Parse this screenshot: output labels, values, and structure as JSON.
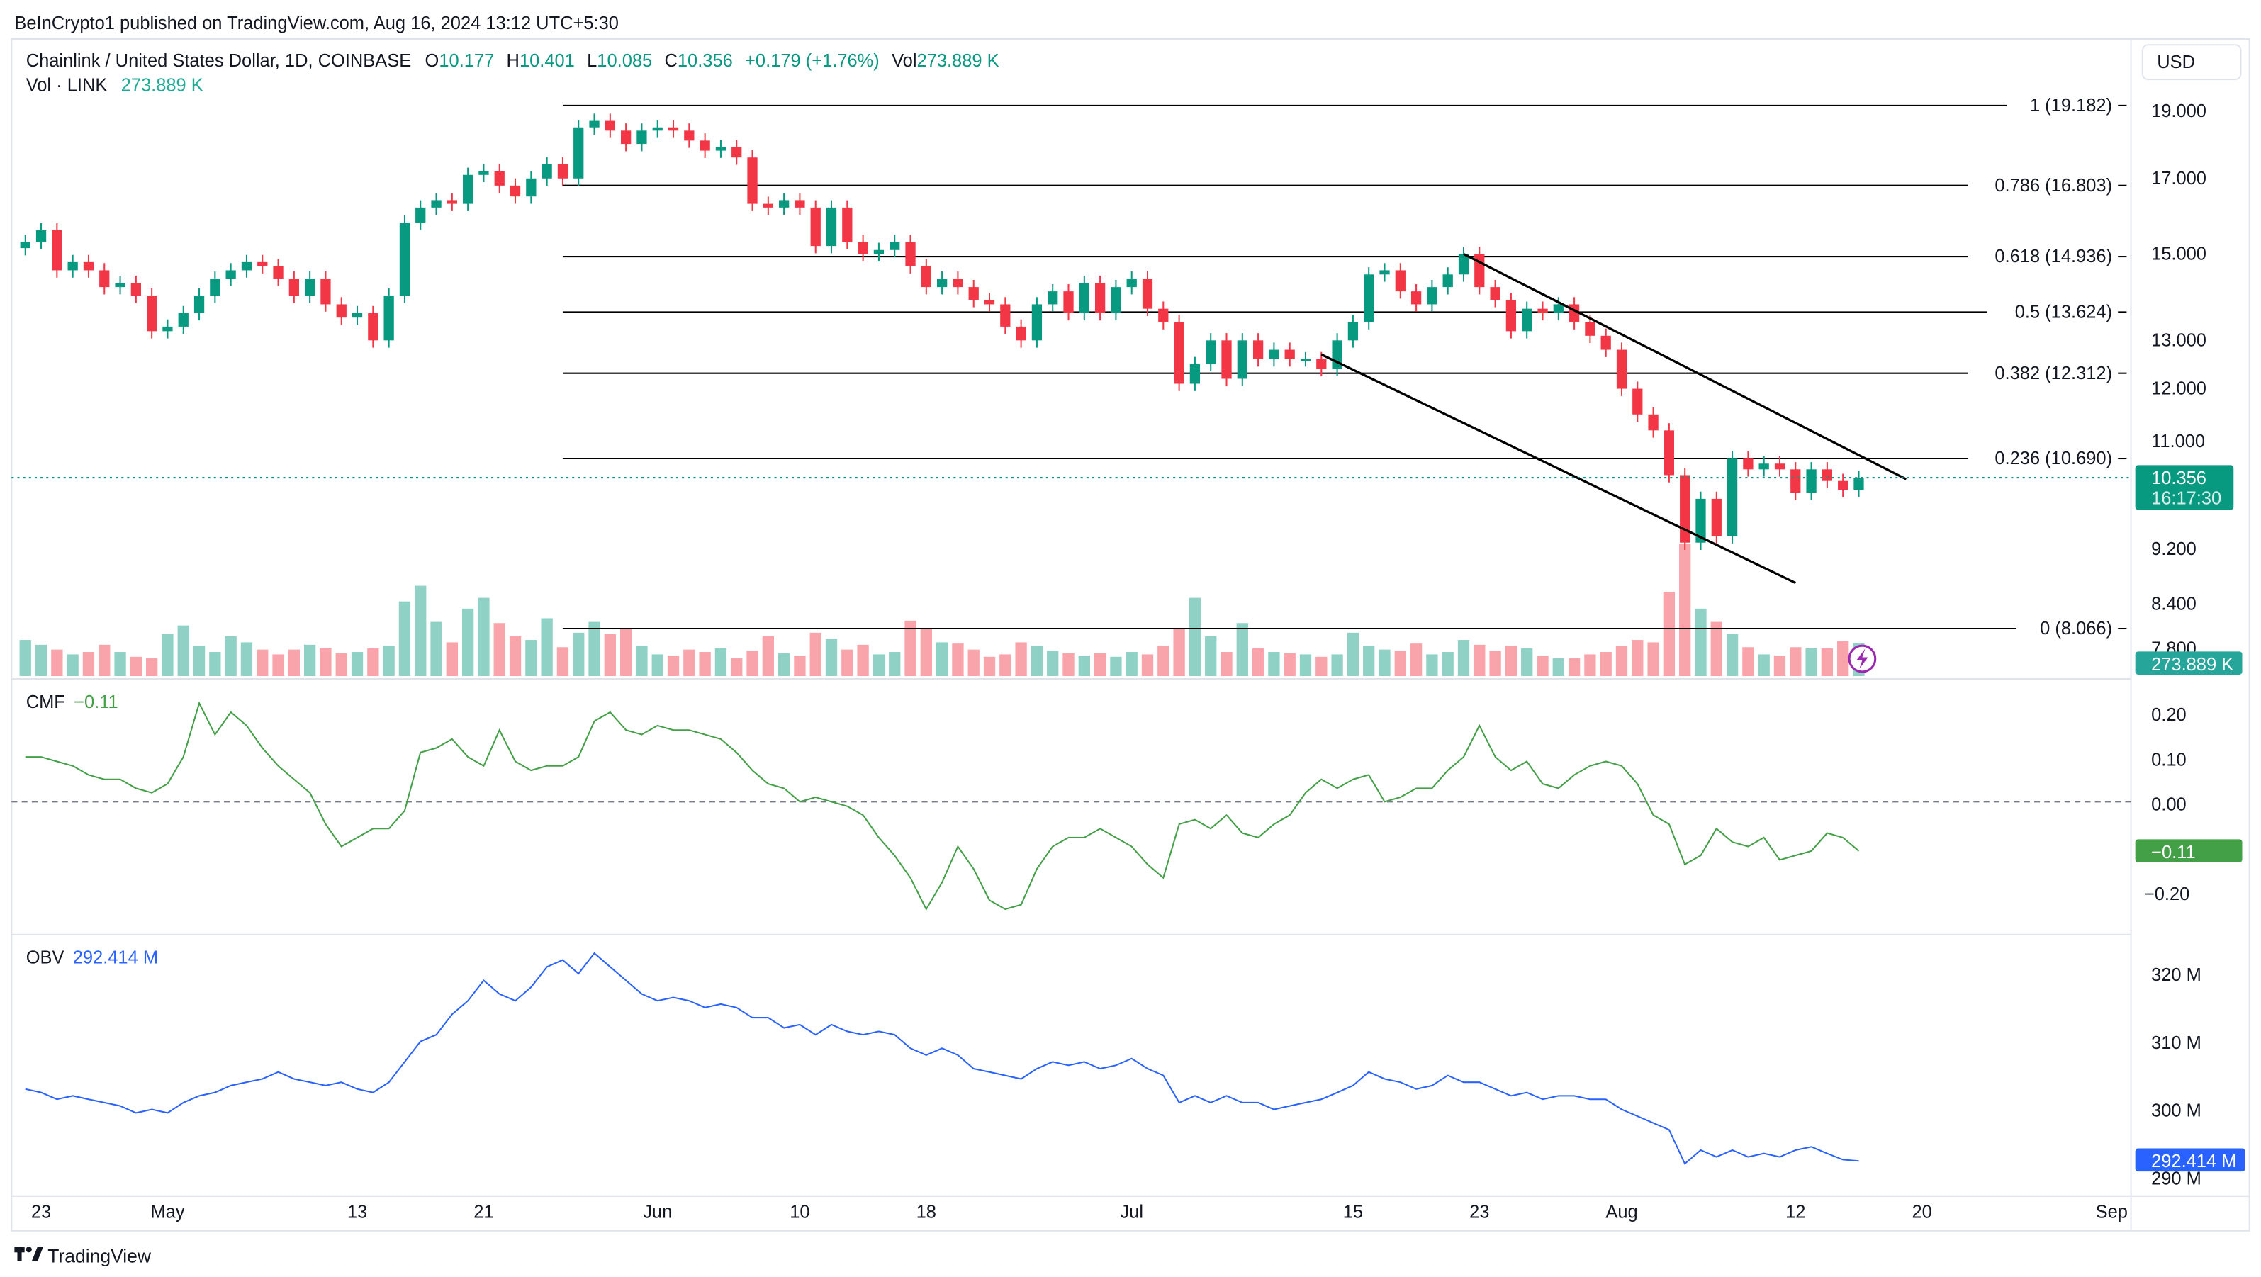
{
  "publish_line": "BeInCrypto1 published on TradingView.com, Aug 16, 2024 13:12 UTC+5:30",
  "legend": {
    "symbol": "Chainlink / United States Dollar, 1D, COINBASE",
    "o_label": "O",
    "o": "10.177",
    "h_label": "H",
    "h": "10.401",
    "l_label": "L",
    "l": "10.085",
    "c_label": "C",
    "c": "10.356",
    "change": "+0.179 (+1.76%)",
    "vol_label": "Vol",
    "vol": "273.889 K",
    "vol_row_label": "Vol · LINK",
    "vol_row_value": "273.889 K"
  },
  "currency_button": "USD",
  "price_badge": {
    "price": "10.356",
    "countdown": "16:17:30"
  },
  "volume_badge": "273.889 K",
  "cmf": {
    "label": "CMF",
    "value": "−0.11",
    "badge": "−0.11",
    "ticks": [
      "0.20",
      "0.10",
      "0.00",
      "−0.20"
    ]
  },
  "obv": {
    "label": "OBV",
    "value": "292.414 M",
    "badge": "292.414 M",
    "ticks": [
      "320 M",
      "310 M",
      "300 M",
      "290 M"
    ]
  },
  "price_ticks": [
    "19.000",
    "17.000",
    "15.000",
    "13.000",
    "12.000",
    "11.000",
    "9.200",
    "8.400",
    "7.800"
  ],
  "date_ticks": [
    "23",
    "May",
    "13",
    "21",
    "Jun",
    "10",
    "18",
    "Jul",
    "15",
    "23",
    "Aug",
    "12",
    "20",
    "Sep"
  ],
  "fib_levels": [
    {
      "label": "1 (19.182)",
      "price": 19.182
    },
    {
      "label": "0.786 (16.803)",
      "price": 16.803
    },
    {
      "label": "0.618 (14.936)",
      "price": 14.936
    },
    {
      "label": "0.5 (13.624)",
      "price": 13.624
    },
    {
      "label": "0.382 (12.312)",
      "price": 12.312
    },
    {
      "label": "0.236 (10.690)",
      "price": 10.69
    },
    {
      "label": "0 (8.066)",
      "price": 8.066
    }
  ],
  "footer_logo": "TradingView",
  "colors": {
    "up": "#089981",
    "down": "#F23645",
    "cmf": "#43A047",
    "obv": "#2962FF",
    "fib": "#000000",
    "channel": "#000000"
  },
  "icons": {
    "alert": "lightning-bolt-icon",
    "logo": "tradingview-logo-icon"
  },
  "chart_data": {
    "type": "candlestick",
    "price_scale": "log",
    "first_date": "2024-04-22",
    "last_date": "2024-08-16",
    "close": [
      15.3,
      15.6,
      14.6,
      14.8,
      14.6,
      14.2,
      14.3,
      14.0,
      13.2,
      13.3,
      13.6,
      14.0,
      14.4,
      14.6,
      14.8,
      14.7,
      14.4,
      14.0,
      14.4,
      13.8,
      13.5,
      13.6,
      13.0,
      14.0,
      15.8,
      16.2,
      16.4,
      16.3,
      17.1,
      17.2,
      16.8,
      16.5,
      17.0,
      17.4,
      17.0,
      18.5,
      18.7,
      18.4,
      18.0,
      18.4,
      18.5,
      18.4,
      18.1,
      17.8,
      17.9,
      17.6,
      16.3,
      16.2,
      16.4,
      16.2,
      15.2,
      16.2,
      15.3,
      15.0,
      15.1,
      15.3,
      14.7,
      14.2,
      14.4,
      14.2,
      13.9,
      13.8,
      13.3,
      13.0,
      13.8,
      14.1,
      13.6,
      14.3,
      13.6,
      14.2,
      14.4,
      13.7,
      13.4,
      12.1,
      12.5,
      13.0,
      12.2,
      13.0,
      12.6,
      12.8,
      12.6,
      12.6,
      12.4,
      13.0,
      13.4,
      14.5,
      14.6,
      14.1,
      13.8,
      14.2,
      14.5,
      15.0,
      14.2,
      13.9,
      13.2,
      13.7,
      13.6,
      13.8,
      13.4,
      13.1,
      12.8,
      12.0,
      11.5,
      11.2,
      10.4,
      9.3,
      10.0,
      9.4,
      10.7,
      10.5,
      10.6,
      10.5,
      10.1,
      10.5,
      10.3,
      10.15,
      10.356
    ],
    "volume_k": [
      300,
      260,
      220,
      180,
      200,
      260,
      200,
      160,
      150,
      350,
      420,
      250,
      200,
      330,
      280,
      220,
      180,
      220,
      260,
      230,
      190,
      200,
      230,
      250,
      620,
      750,
      450,
      280,
      560,
      650,
      440,
      330,
      300,
      480,
      240,
      360,
      450,
      350,
      390,
      250,
      180,
      170,
      220,
      200,
      230,
      150,
      210,
      330,
      190,
      170,
      360,
      310,
      220,
      260,
      180,
      200,
      460,
      390,
      280,
      270,
      220,
      160,
      180,
      280,
      250,
      210,
      190,
      170,
      190,
      160,
      200,
      180,
      250,
      400,
      650,
      330,
      200,
      440,
      230,
      200,
      190,
      180,
      160,
      180,
      360,
      250,
      220,
      210,
      270,
      180,
      200,
      300,
      260,
      210,
      250,
      230,
      170,
      150,
      150,
      180,
      200,
      250,
      300,
      280,
      700,
      1100,
      560,
      450,
      350,
      240,
      180,
      170,
      240,
      230,
      230,
      290,
      273.889
    ],
    "cmf": [
      0.1,
      0.1,
      0.09,
      0.08,
      0.06,
      0.05,
      0.05,
      0.03,
      0.02,
      0.04,
      0.1,
      0.22,
      0.15,
      0.2,
      0.17,
      0.12,
      0.08,
      0.05,
      0.02,
      -0.05,
      -0.1,
      -0.08,
      -0.06,
      -0.06,
      -0.02,
      0.11,
      0.12,
      0.14,
      0.1,
      0.08,
      0.16,
      0.09,
      0.07,
      0.08,
      0.08,
      0.1,
      0.18,
      0.2,
      0.16,
      0.15,
      0.17,
      0.16,
      0.16,
      0.15,
      0.14,
      0.11,
      0.07,
      0.04,
      0.03,
      0.0,
      0.01,
      0.0,
      -0.01,
      -0.03,
      -0.08,
      -0.12,
      -0.17,
      -0.24,
      -0.18,
      -0.1,
      -0.15,
      -0.22,
      -0.24,
      -0.23,
      -0.15,
      -0.1,
      -0.08,
      -0.08,
      -0.06,
      -0.08,
      -0.1,
      -0.14,
      -0.17,
      -0.05,
      -0.04,
      -0.06,
      -0.03,
      -0.07,
      -0.08,
      -0.05,
      -0.03,
      0.02,
      0.05,
      0.03,
      0.05,
      0.06,
      0.0,
      0.01,
      0.03,
      0.03,
      0.07,
      0.1,
      0.17,
      0.1,
      0.07,
      0.09,
      0.04,
      0.03,
      0.06,
      0.08,
      0.09,
      0.08,
      0.04,
      -0.03,
      -0.05,
      -0.14,
      -0.12,
      -0.06,
      -0.09,
      -0.1,
      -0.08,
      -0.13,
      -0.12,
      -0.11,
      -0.07,
      -0.08,
      -0.11
    ],
    "obv_m": [
      303,
      302.5,
      301.5,
      302,
      301.5,
      301,
      300.5,
      299.5,
      300,
      299.5,
      301,
      302,
      302.5,
      303.5,
      304,
      304.5,
      305.5,
      304.5,
      304,
      303.5,
      304,
      303,
      302.5,
      304,
      307,
      310,
      311,
      314,
      316,
      319,
      317,
      316,
      318,
      321,
      322,
      320,
      323,
      321,
      319,
      317,
      316,
      316.5,
      316,
      315,
      315.5,
      315,
      313.5,
      313.5,
      312,
      312.5,
      311,
      312.5,
      311.5,
      311,
      311.5,
      311,
      309,
      308,
      309,
      308,
      306,
      305.5,
      305,
      304.5,
      306,
      307,
      306.5,
      307,
      306,
      306.5,
      307.5,
      306,
      305,
      301,
      302,
      301,
      302,
      301,
      301,
      300,
      300.5,
      301,
      301.5,
      302.5,
      303.5,
      305.5,
      304.5,
      304,
      303,
      303.5,
      305,
      304,
      304,
      303,
      302,
      302.5,
      301.5,
      302,
      302,
      301.5,
      301.5,
      300,
      299,
      298,
      297,
      292,
      294,
      293,
      294,
      293,
      293.5,
      293,
      294,
      294.5,
      293.5,
      292.6,
      292.414
    ],
    "channel_lines": [
      {
        "from": {
          "date": "2024-07-22",
          "price": 15.0
        },
        "to": {
          "date": "2024-08-19",
          "price": 10.33
        }
      },
      {
        "from": {
          "date": "2024-07-13",
          "price": 12.7
        },
        "to": {
          "date": "2024-08-12",
          "price": 8.7
        }
      }
    ],
    "fib_start_date": "2024-05-26"
  }
}
